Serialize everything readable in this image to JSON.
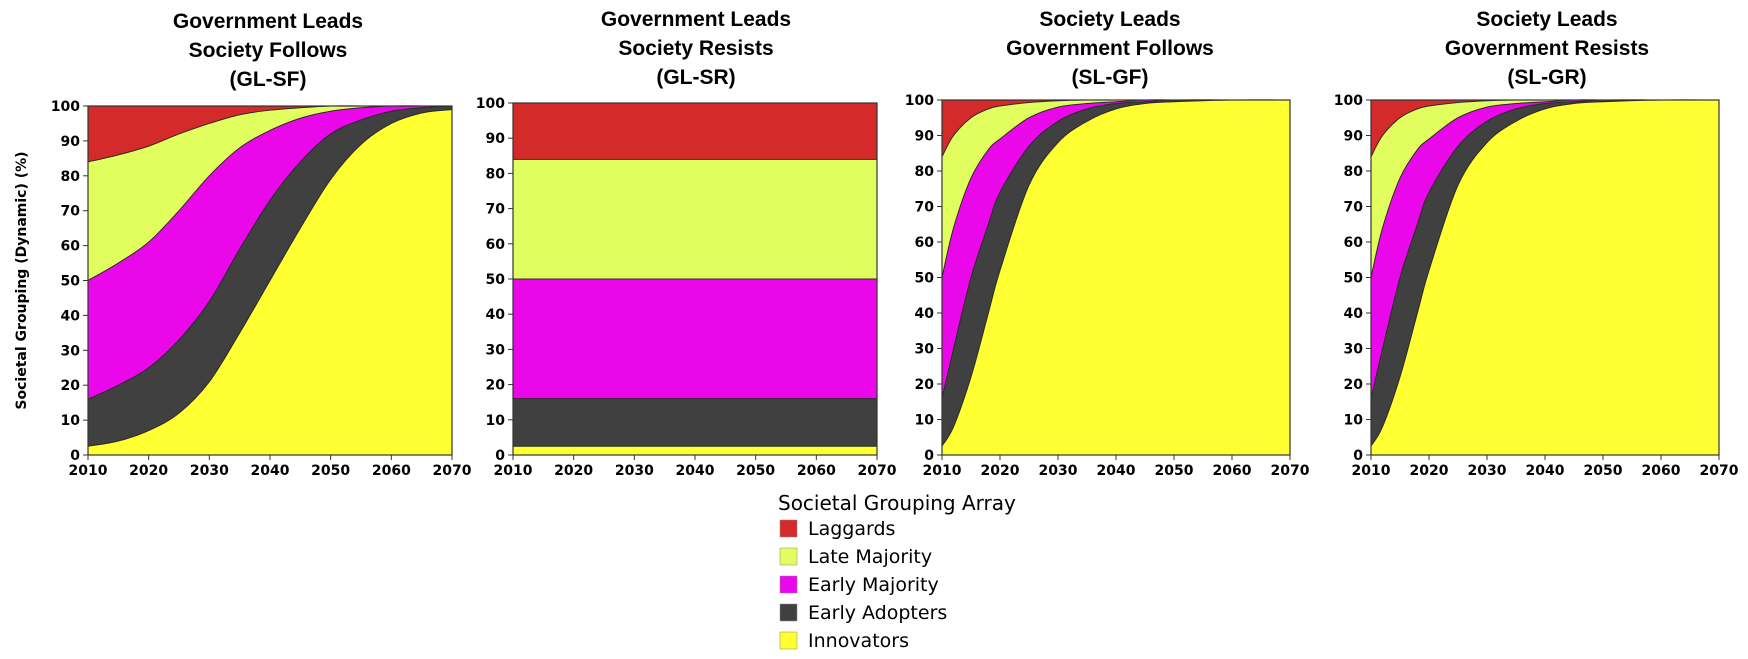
{
  "chart_data": [
    {
      "type": "area",
      "stacked": true,
      "title": [
        "Government Leads",
        "Society Follows",
        "(GL-SF)"
      ],
      "xlabel": "",
      "ylabel": "Societal Grouping (Dynamic) (%)",
      "xlim": [
        2010,
        2070
      ],
      "ylim": [
        0,
        100
      ],
      "xticks": [
        2010,
        2020,
        2030,
        2040,
        2050,
        2060,
        2070
      ],
      "yticks": [
        0,
        10,
        20,
        30,
        40,
        50,
        60,
        70,
        80,
        90,
        100
      ],
      "x": [
        2010,
        2015,
        2020,
        2025,
        2030,
        2035,
        2040,
        2045,
        2050,
        2055,
        2060,
        2065,
        2070
      ],
      "boundaries": [
        {
          "name": "Innovators",
          "values": [
            2.5,
            4,
            7,
            12,
            21,
            35,
            50,
            65,
            79,
            89,
            95,
            98,
            99
          ]
        },
        {
          "name": "Early Adopters",
          "values": [
            16,
            20,
            25,
            33,
            44,
            59,
            73,
            84,
            92,
            96,
            98.5,
            99.5,
            100
          ]
        },
        {
          "name": "Early Majority",
          "values": [
            50,
            55,
            61,
            70,
            80,
            88,
            93,
            96.5,
            98.5,
            99.5,
            100,
            100,
            100
          ]
        },
        {
          "name": "Late Majority",
          "values": [
            84,
            86,
            88.5,
            92,
            95,
            97.5,
            98.8,
            99.5,
            100,
            100,
            100,
            100,
            100
          ]
        },
        {
          "name": "Laggards",
          "values": [
            100,
            100,
            100,
            100,
            100,
            100,
            100,
            100,
            100,
            100,
            100,
            100,
            100
          ]
        }
      ]
    },
    {
      "type": "area",
      "stacked": true,
      "title": [
        "Government Leads",
        "Society Resists",
        "(GL-SR)"
      ],
      "xlabel": "",
      "ylabel": "",
      "xlim": [
        2010,
        2070
      ],
      "ylim": [
        0,
        100
      ],
      "xticks": [
        2010,
        2020,
        2030,
        2040,
        2050,
        2060,
        2070
      ],
      "yticks": [
        0,
        10,
        20,
        30,
        40,
        50,
        60,
        70,
        80,
        90,
        100
      ],
      "x": [
        2010,
        2070
      ],
      "boundaries": [
        {
          "name": "Innovators",
          "values": [
            2.5,
            2.5
          ]
        },
        {
          "name": "Early Adopters",
          "values": [
            16,
            16
          ]
        },
        {
          "name": "Early Majority",
          "values": [
            50,
            50
          ]
        },
        {
          "name": "Late Majority",
          "values": [
            84,
            84
          ]
        },
        {
          "name": "Laggards",
          "values": [
            100,
            100
          ]
        }
      ]
    },
    {
      "type": "area",
      "stacked": true,
      "title": [
        "Society Leads",
        "Government Follows",
        "(SL-GF)"
      ],
      "xlabel": "",
      "ylabel": "",
      "xlim": [
        2010,
        2070
      ],
      "ylim": [
        0,
        100
      ],
      "xticks": [
        2010,
        2020,
        2030,
        2040,
        2050,
        2060,
        2070
      ],
      "yticks": [
        0,
        10,
        20,
        30,
        40,
        50,
        60,
        70,
        80,
        90,
        100
      ],
      "x": [
        2010,
        2012,
        2015,
        2018,
        2020,
        2025,
        2030,
        2035,
        2040,
        2045,
        2050,
        2060,
        2070
      ],
      "boundaries": [
        {
          "name": "Innovators",
          "values": [
            2.5,
            8,
            22,
            40,
            52,
            76,
            88,
            94,
            97.5,
            99,
            99.5,
            100,
            100
          ]
        },
        {
          "name": "Early Adopters",
          "values": [
            16,
            30,
            50,
            65,
            74,
            87,
            94,
            97.5,
            99,
            99.5,
            100,
            100,
            100
          ]
        },
        {
          "name": "Early Majority",
          "values": [
            50,
            64,
            78,
            86,
            89,
            95,
            98,
            99,
            99.5,
            100,
            100,
            100,
            100
          ]
        },
        {
          "name": "Late Majority",
          "values": [
            84,
            90,
            95,
            97.5,
            98.3,
            99.3,
            99.8,
            100,
            100,
            100,
            100,
            100,
            100
          ]
        },
        {
          "name": "Laggards",
          "values": [
            100,
            100,
            100,
            100,
            100,
            100,
            100,
            100,
            100,
            100,
            100,
            100,
            100
          ]
        }
      ]
    },
    {
      "type": "area",
      "stacked": true,
      "title": [
        "Society Leads",
        "Government Resists",
        "(SL-GR)"
      ],
      "xlabel": "",
      "ylabel": "",
      "xlim": [
        2010,
        2070
      ],
      "ylim": [
        0,
        100
      ],
      "xticks": [
        2010,
        2020,
        2030,
        2040,
        2050,
        2060,
        2070
      ],
      "yticks": [
        0,
        10,
        20,
        30,
        40,
        50,
        60,
        70,
        80,
        90,
        100
      ],
      "x": [
        2010,
        2012,
        2015,
        2018,
        2020,
        2025,
        2030,
        2035,
        2040,
        2045,
        2050,
        2060,
        2070
      ],
      "boundaries": [
        {
          "name": "Innovators",
          "values": [
            2.5,
            8,
            22,
            40,
            52,
            76,
            88,
            94,
            97.5,
            99,
            99.5,
            100,
            100
          ]
        },
        {
          "name": "Early Adopters",
          "values": [
            16,
            30,
            50,
            65,
            74,
            87,
            94,
            97.5,
            99,
            99.5,
            100,
            100,
            100
          ]
        },
        {
          "name": "Early Majority",
          "values": [
            50,
            64,
            78,
            86,
            89,
            95,
            98,
            99,
            99.5,
            100,
            100,
            100,
            100
          ]
        },
        {
          "name": "Late Majority",
          "values": [
            84,
            90,
            95,
            97.5,
            98.3,
            99.3,
            99.8,
            100,
            100,
            100,
            100,
            100,
            100
          ]
        },
        {
          "name": "Laggards",
          "values": [
            100,
            100,
            100,
            100,
            100,
            100,
            100,
            100,
            100,
            100,
            100,
            100,
            100
          ]
        }
      ]
    }
  ],
  "legend": {
    "title": "Societal Grouping Array",
    "placement": "bottom-center",
    "entries": [
      {
        "name": "Laggards",
        "color": "#d42a2a"
      },
      {
        "name": "Late Majority",
        "color": "#e2fd5e"
      },
      {
        "name": "Early Majority",
        "color": "#ea08ea"
      },
      {
        "name": "Early Adopters",
        "color": "#404040"
      },
      {
        "name": "Innovators",
        "color": "#ffff32"
      }
    ]
  },
  "colors": {
    "Innovators": "#ffff32",
    "Early Adopters": "#404040",
    "Early Majority": "#ea08ea",
    "Late Majority": "#e2fd5e",
    "Laggards": "#d42a2a"
  }
}
